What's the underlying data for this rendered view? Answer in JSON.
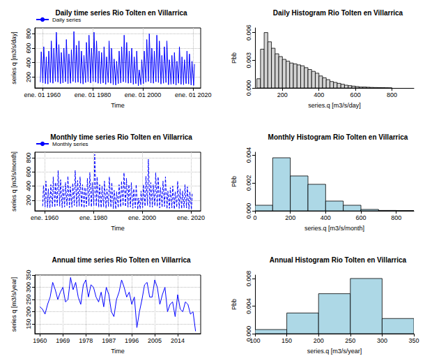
{
  "chart_data": [
    {
      "type": "line",
      "title": "Daily time series Rio Tolten en Villarrica",
      "xlabel": "Time",
      "ylabel": "series q [m3/s/day]",
      "x": [
        1959.2,
        1959.55,
        1960.2,
        1960.55,
        1961.2,
        1961.55,
        1962.2,
        1962.55,
        1963.2,
        1963.55,
        1964.2,
        1964.55,
        1965.2,
        1965.55,
        1966.2,
        1966.55,
        1967.2,
        1967.55,
        1968.2,
        1968.55,
        1969.2,
        1969.55,
        1970.2,
        1970.55,
        1971.2,
        1971.55,
        1972.2,
        1972.55,
        1973.2,
        1973.55,
        1974.2,
        1974.55,
        1975.2,
        1975.55,
        1976.2,
        1976.55,
        1977.2,
        1977.55,
        1978.2,
        1978.55,
        1979.2,
        1979.55,
        1980.2,
        1980.55,
        1981.2,
        1981.55,
        1982.2,
        1982.55,
        1983.2,
        1983.55,
        1984.2,
        1984.55,
        1985.2,
        1985.55,
        1986.2,
        1986.55,
        1987.2,
        1987.55,
        1988.2,
        1988.55,
        1989.2,
        1989.55,
        1990.2,
        1990.55,
        1991.2,
        1991.55,
        1992.2,
        1992.55,
        1993.2,
        1993.55,
        1994.2,
        1994.55,
        1995.2,
        1995.55,
        1996.2,
        1996.55,
        1997.2,
        1997.55,
        1998.2,
        1998.55,
        1999.2,
        1999.55,
        2000.2,
        2000.55,
        2001.2,
        2001.55,
        2002.2,
        2002.55,
        2003.2,
        2003.55,
        2004.2,
        2004.55,
        2005.2,
        2005.55,
        2006.2,
        2006.55,
        2007.2,
        2007.55,
        2008.2,
        2008.55,
        2009.2,
        2009.55,
        2010.2,
        2010.55,
        2011.2,
        2011.55,
        2012.2,
        2012.55,
        2013.2,
        2013.55,
        2014.2,
        2014.55,
        2015.2,
        2015.55,
        2016.2,
        2016.55,
        2017.2,
        2017.55,
        2018.2,
        2018.55,
        2019.2,
        2019.55,
        2020.2,
        2020.55
      ],
      "series": [
        {
          "name": "Daily series",
          "color": "#0000ff",
          "line_style": "solid",
          "values": [
            130,
            550,
            120,
            620,
            110,
            480,
            105,
            560,
            125,
            700,
            115,
            600,
            140,
            820,
            130,
            650,
            110,
            540,
            120,
            600,
            135,
            720,
            110,
            520,
            115,
            580,
            140,
            830,
            125,
            640,
            130,
            700,
            115,
            560,
            105,
            500,
            125,
            680,
            135,
            780,
            120,
            600,
            140,
            820,
            130,
            700,
            115,
            560,
            110,
            540,
            120,
            620,
            100,
            480,
            125,
            700,
            115,
            600,
            95,
            450,
            90,
            420,
            110,
            560,
            120,
            620,
            135,
            780,
            125,
            680,
            115,
            560,
            120,
            600,
            100,
            480,
            110,
            560,
            80,
            300,
            95,
            440,
            110,
            560,
            130,
            720,
            140,
            800,
            120,
            600,
            115,
            560,
            135,
            780,
            125,
            700,
            105,
            500,
            115,
            620,
            125,
            700,
            95,
            440,
            100,
            500,
            105,
            540,
            90,
            420,
            115,
            620,
            100,
            480,
            95,
            440,
            110,
            560,
            105,
            520,
            90,
            420,
            85,
            380
          ]
        }
      ],
      "xlim": [
        1957,
        2023
      ],
      "xticks": [
        {
          "value": 1960,
          "label": "ene. 01 1960"
        },
        {
          "value": 1980,
          "label": "ene. 01 1980"
        },
        {
          "value": 2000,
          "label": "ene. 01 2000"
        },
        {
          "value": 2020,
          "label": "ene. 01 2020"
        }
      ],
      "ylim": [
        50,
        880
      ],
      "yticks": [
        200,
        400,
        600,
        800
      ],
      "grid": true,
      "legend": "top-left"
    },
    {
      "type": "histogram",
      "title": "Daily Histogram Rio Tolten en Villarrica",
      "xlabel": "series.q [m3/s/day]",
      "ylabel": "Pbb",
      "color": "#d3d3d3",
      "bins": [
        60,
        80,
        100,
        120,
        140,
        160,
        180,
        200,
        220,
        240,
        260,
        280,
        300,
        320,
        340,
        360,
        380,
        400,
        420,
        440,
        460,
        480,
        500,
        520,
        540,
        560,
        580,
        600,
        620,
        640,
        660,
        680,
        700,
        720,
        740,
        760,
        780,
        800
      ],
      "values": [
        0.001,
        0.0042,
        0.006,
        0.005,
        0.0043,
        0.0037,
        0.0034,
        0.0031,
        0.0029,
        0.0027,
        0.0026,
        0.0025,
        0.0024,
        0.0022,
        0.002,
        0.0018,
        0.0016,
        0.0013,
        0.0011,
        0.0009,
        0.0007,
        0.0006,
        0.0005,
        0.0004,
        0.0003,
        0.00025,
        0.0002,
        0.00015,
        0.0001,
        0.0001,
        8e-05,
        6e-05,
        5e-05,
        4e-05,
        3e-05,
        2e-05,
        1e-05
      ],
      "xlim": [
        50,
        920
      ],
      "xticks": [
        200,
        400,
        600,
        800
      ],
      "ylim": [
        0,
        0.0065
      ],
      "yticks": [
        {
          "value": 0,
          "label": "0.000"
        },
        {
          "value": 0.003,
          "label": "0.003"
        },
        {
          "value": 0.006,
          "label": "0.006"
        }
      ],
      "grid": false
    },
    {
      "type": "line",
      "title": "Monthly time series Rio Tolten en Villarrica",
      "xlabel": "Time",
      "ylabel": "series q [m3/s/month]",
      "x": [
        1959.2,
        1959.55,
        1960.2,
        1960.55,
        1961.2,
        1961.55,
        1962.2,
        1962.55,
        1963.2,
        1963.55,
        1964.2,
        1964.55,
        1965.2,
        1965.55,
        1966.2,
        1966.55,
        1967.2,
        1967.55,
        1968.2,
        1968.55,
        1969.2,
        1969.55,
        1970.2,
        1970.55,
        1971.2,
        1971.55,
        1972.2,
        1972.55,
        1973.2,
        1973.55,
        1974.2,
        1974.55,
        1975.2,
        1975.55,
        1976.2,
        1976.55,
        1977.2,
        1977.55,
        1978.2,
        1978.55,
        1979.2,
        1979.55,
        1980.2,
        1980.55,
        1981.2,
        1981.55,
        1982.2,
        1982.55,
        1983.2,
        1983.55,
        1984.2,
        1984.55,
        1985.2,
        1985.55,
        1986.2,
        1986.55,
        1987.2,
        1987.55,
        1988.2,
        1988.55,
        1989.2,
        1989.55,
        1990.2,
        1990.55,
        1991.2,
        1991.55,
        1992.2,
        1992.55,
        1993.2,
        1993.55,
        1994.2,
        1994.55,
        1995.2,
        1995.55,
        1996.2,
        1996.55,
        1997.2,
        1997.55,
        1998.2,
        1998.55,
        1999.2,
        1999.55,
        2000.2,
        2000.55,
        2001.2,
        2001.55,
        2002.2,
        2002.55,
        2003.2,
        2003.55,
        2004.2,
        2004.55,
        2005.2,
        2005.55,
        2006.2,
        2006.55,
        2007.2,
        2007.55,
        2008.2,
        2008.55,
        2009.2,
        2009.55,
        2010.2,
        2010.55,
        2011.2,
        2011.55,
        2012.2,
        2012.55,
        2013.2,
        2013.55,
        2014.2,
        2014.55,
        2015.2,
        2015.55,
        2016.2,
        2016.55,
        2017.2,
        2017.55,
        2018.2,
        2018.55,
        2019.2,
        2019.55,
        2020.2,
        2020.55
      ],
      "series": [
        {
          "name": "Monthly series",
          "color": "#0000ff",
          "line_style": "dashed",
          "values": [
            115,
            410,
            105,
            470,
            95,
            360,
            90,
            420,
            110,
            530,
            100,
            450,
            125,
            620,
            115,
            490,
            95,
            400,
            105,
            450,
            120,
            540,
            95,
            390,
            100,
            440,
            125,
            620,
            110,
            480,
            115,
            530,
            100,
            420,
            90,
            380,
            110,
            510,
            120,
            590,
            105,
            450,
            125,
            850,
            115,
            530,
            100,
            420,
            95,
            400,
            105,
            470,
            85,
            360,
            110,
            530,
            100,
            450,
            80,
            340,
            75,
            320,
            95,
            420,
            105,
            470,
            120,
            590,
            110,
            510,
            100,
            420,
            105,
            450,
            85,
            360,
            95,
            420,
            70,
            230,
            80,
            330,
            95,
            420,
            115,
            540,
            125,
            780,
            105,
            450,
            100,
            420,
            120,
            590,
            110,
            530,
            90,
            380,
            100,
            470,
            110,
            530,
            80,
            330,
            85,
            380,
            90,
            400,
            75,
            320,
            100,
            470,
            85,
            360,
            80,
            330,
            95,
            420,
            90,
            390,
            75,
            320,
            70,
            290
          ]
        }
      ],
      "xlim": [
        1956,
        2024
      ],
      "xticks": [
        {
          "value": 1960,
          "label": "ene. 1960"
        },
        {
          "value": 1980,
          "label": "ene. 1980"
        },
        {
          "value": 2000,
          "label": "ene. 2000"
        },
        {
          "value": 2020,
          "label": "ene. 2020"
        }
      ],
      "ylim": [
        50,
        880
      ],
      "yticks": [
        200,
        400,
        600,
        800
      ],
      "grid": true,
      "legend": "top-left"
    },
    {
      "type": "histogram",
      "title": "Monthly Histogram Rio Tolten en Villarrica",
      "xlabel": "series.q [m3/s/month]",
      "ylabel": "Pbb",
      "color": "#add8e6",
      "bins": [
        0,
        100,
        200,
        300,
        400,
        500,
        600,
        700,
        800,
        900
      ],
      "values": [
        0.0004,
        0.0038,
        0.0025,
        0.0019,
        0.0007,
        0.0004,
        0.0001,
        3e-05,
        2e-05
      ],
      "xlim": [
        0,
        900
      ],
      "xticks": [
        0,
        200,
        400,
        600,
        800
      ],
      "ylim": [
        0,
        0.0042
      ],
      "yticks": [
        {
          "value": 0,
          "label": "0.000"
        },
        {
          "value": 0.002,
          "label": "0.002"
        },
        {
          "value": 0.004,
          "label": "0.004"
        }
      ],
      "grid": false
    },
    {
      "type": "line",
      "title": "Annual time series Rio Tolten en Villarrica",
      "xlabel": "Time",
      "ylabel": "series q [m3/s/year]",
      "x": [
        1960,
        1961,
        1962,
        1963,
        1964,
        1965,
        1966,
        1967,
        1968,
        1969,
        1970,
        1971,
        1972,
        1973,
        1974,
        1975,
        1976,
        1977,
        1978,
        1979,
        1980,
        1981,
        1982,
        1983,
        1984,
        1985,
        1986,
        1987,
        1988,
        1989,
        1990,
        1991,
        1992,
        1993,
        1994,
        1995,
        1996,
        1997,
        1998,
        1999,
        2000,
        2001,
        2002,
        2003,
        2004,
        2005,
        2006,
        2007,
        2008,
        2009,
        2010,
        2011,
        2012,
        2013,
        2014,
        2015,
        2016,
        2017,
        2018,
        2019,
        2020,
        2021
      ],
      "series": [
        {
          "color": "#0000ff",
          "line_style": "solid",
          "values": [
            220,
            210,
            190,
            230,
            260,
            320,
            290,
            250,
            280,
            300,
            240,
            250,
            340,
            290,
            320,
            260,
            230,
            310,
            330,
            260,
            310,
            300,
            260,
            240,
            280,
            220,
            300,
            270,
            200,
            180,
            250,
            280,
            330,
            300,
            260,
            280,
            230,
            260,
            135,
            200,
            250,
            310,
            320,
            260,
            260,
            330,
            300,
            230,
            270,
            300,
            200,
            230,
            240,
            180,
            270,
            210,
            200,
            240,
            230,
            190,
            200,
            120
          ]
        }
      ],
      "xlim": [
        1958,
        2023
      ],
      "xticks": [
        1960,
        1969,
        1978,
        1987,
        1996,
        2005,
        2014
      ],
      "ylim": [
        110,
        350
      ],
      "yticks": [
        150,
        200,
        250,
        300,
        350
      ],
      "grid": true
    },
    {
      "type": "histogram",
      "title": "Annual Histogram Rio Tolten en Villarrica",
      "xlabel": "series.q [m3/s/year]",
      "ylabel": "Pbb",
      "color": "#add8e6",
      "bins": [
        100,
        150,
        200,
        250,
        300,
        350
      ],
      "values": [
        0.0006,
        0.003,
        0.0058,
        0.008,
        0.0022
      ],
      "xlim": [
        100,
        350
      ],
      "xticks": [
        100,
        150,
        200,
        250,
        300,
        350
      ],
      "ylim": [
        0,
        0.0085
      ],
      "yticks": [
        {
          "value": 0,
          "label": "0.000"
        },
        {
          "value": 0.004,
          "label": "0.004"
        },
        {
          "value": 0.008,
          "label": "0.008"
        }
      ],
      "grid": false
    }
  ]
}
